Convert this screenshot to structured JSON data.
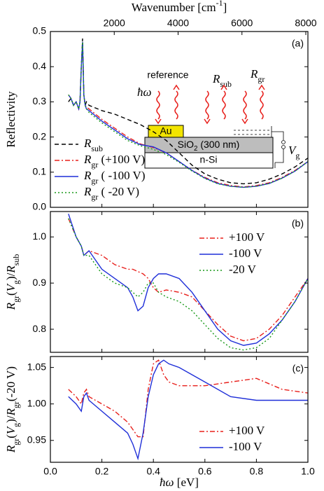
{
  "chart_data": [
    {
      "type": "line",
      "panel_label": "(a)",
      "x2label": [
        [
          "Wavenumber [cm",
          ""
        ],
        [
          "-1",
          "sup"
        ],
        [
          "]",
          ""
        ]
      ],
      "x2lim": [
        0,
        8065.5
      ],
      "x2ticks": [
        2000,
        4000,
        6000,
        8000
      ],
      "ylabel": [
        [
          "Reflectivity",
          ""
        ]
      ],
      "xlim": [
        0,
        1
      ],
      "xticks": [
        {
          "value": 0,
          "label": "0.0"
        },
        0.2,
        0.4,
        0.6,
        0.8,
        {
          "value": 1,
          "label": "1.0"
        }
      ],
      "ylim": [
        0,
        0.5
      ],
      "yticks": [
        {
          "value": 0,
          "label": "0.0"
        },
        0.1,
        0.2,
        0.3,
        0.4,
        0.5
      ],
      "legend": "lower left",
      "x": [
        0.07,
        0.08,
        0.09,
        0.1,
        0.11,
        0.115,
        0.12,
        0.125,
        0.13,
        0.135,
        0.14,
        0.15,
        0.2,
        0.25,
        0.3,
        0.35,
        0.4,
        0.45,
        0.5,
        0.55,
        0.6,
        0.65,
        0.7,
        0.75,
        0.8,
        0.85,
        0.9,
        0.95,
        1.0
      ],
      "series": [
        {
          "name": [
            [
              "R",
              "i"
            ],
            [
              "sub",
              "sub"
            ]
          ],
          "color": "#000000",
          "style": "dashed",
          "values": [
            0.3,
            0.31,
            0.29,
            0.3,
            0.28,
            0.3,
            0.4,
            0.48,
            0.32,
            0.29,
            0.3,
            0.29,
            0.275,
            0.265,
            0.25,
            0.235,
            0.215,
            0.19,
            0.155,
            0.12,
            0.095,
            0.08,
            0.07,
            0.067,
            0.07,
            0.08,
            0.095,
            0.115,
            0.14
          ]
        },
        {
          "name": [
            [
              "R",
              "i"
            ],
            [
              "gr",
              "sub"
            ],
            [
              " (+100 V)",
              ""
            ]
          ],
          "color": "#e8201c",
          "style": "dashdot",
          "values": [
            0.32,
            0.31,
            0.29,
            0.3,
            0.28,
            0.3,
            0.4,
            0.47,
            0.32,
            0.29,
            0.285,
            0.28,
            0.25,
            0.225,
            0.2,
            0.18,
            0.17,
            0.155,
            0.13,
            0.105,
            0.085,
            0.07,
            0.062,
            0.058,
            0.062,
            0.07,
            0.085,
            0.105,
            0.13
          ]
        },
        {
          "name": [
            [
              "R",
              "i"
            ],
            [
              "gr",
              "sub"
            ],
            [
              " ( -100 V)",
              ""
            ]
          ],
          "color": "#1f2fd8",
          "style": "solid",
          "values": [
            0.32,
            0.31,
            0.29,
            0.3,
            0.28,
            0.3,
            0.4,
            0.47,
            0.32,
            0.29,
            0.28,
            0.275,
            0.245,
            0.22,
            0.195,
            0.178,
            0.172,
            0.155,
            0.13,
            0.105,
            0.083,
            0.068,
            0.06,
            0.057,
            0.06,
            0.068,
            0.083,
            0.103,
            0.13
          ]
        },
        {
          "name": [
            [
              "R",
              "i"
            ],
            [
              "gr",
              "sub"
            ],
            [
              " ( -20 V)",
              ""
            ]
          ],
          "color": "#1a9a1a",
          "style": "dotted",
          "values": [
            0.32,
            0.31,
            0.29,
            0.3,
            0.28,
            0.3,
            0.4,
            0.47,
            0.32,
            0.29,
            0.28,
            0.27,
            0.24,
            0.215,
            0.19,
            0.175,
            0.165,
            0.15,
            0.128,
            0.103,
            0.082,
            0.067,
            0.06,
            0.057,
            0.06,
            0.068,
            0.083,
            0.103,
            0.13
          ]
        }
      ]
    },
    {
      "type": "line",
      "panel_label": "(b)",
      "ylabel": [
        [
          "R",
          "i"
        ],
        [
          "gr",
          "sub"
        ],
        [
          "(",
          ""
        ],
        [
          "V",
          "i"
        ],
        [
          "g",
          "sub"
        ],
        [
          ")/",
          ""
        ],
        [
          "R",
          "i"
        ],
        [
          "sub",
          "sub"
        ]
      ],
      "xlim": [
        0,
        1
      ],
      "xticks": [
        {
          "value": 0,
          "label": "0.0"
        },
        0.2,
        0.4,
        0.6,
        0.8,
        {
          "value": 1,
          "label": "1.0"
        }
      ],
      "ylim": [
        0.75,
        1.055
      ],
      "yticks": [
        0.8,
        0.9,
        {
          "value": 1,
          "label": "1.0"
        }
      ],
      "legend": "upper right",
      "x": [
        0.07,
        0.1,
        0.12,
        0.13,
        0.15,
        0.2,
        0.25,
        0.3,
        0.32,
        0.34,
        0.36,
        0.38,
        0.4,
        0.42,
        0.45,
        0.5,
        0.55,
        0.6,
        0.65,
        0.7,
        0.75,
        0.8,
        0.85,
        0.9,
        0.95,
        1.0
      ],
      "series": [
        {
          "name": [
            [
              "+100 V",
              ""
            ]
          ],
          "color": "#e8201c",
          "style": "dashdot",
          "values": [
            1.04,
            1.0,
            0.98,
            0.96,
            0.97,
            0.96,
            0.94,
            0.93,
            0.93,
            0.925,
            0.92,
            0.91,
            0.89,
            0.88,
            0.885,
            0.88,
            0.87,
            0.84,
            0.81,
            0.785,
            0.775,
            0.78,
            0.8,
            0.83,
            0.87,
            0.91
          ]
        },
        {
          "name": [
            [
              "-100 V",
              ""
            ]
          ],
          "color": "#1f2fd8",
          "style": "solid",
          "values": [
            1.05,
            1.0,
            0.98,
            0.96,
            0.97,
            0.93,
            0.91,
            0.89,
            0.87,
            0.84,
            0.85,
            0.89,
            0.91,
            0.92,
            0.92,
            0.91,
            0.88,
            0.84,
            0.8,
            0.775,
            0.765,
            0.77,
            0.79,
            0.82,
            0.86,
            0.91
          ]
        },
        {
          "name": [
            [
              "-20 V",
              ""
            ]
          ],
          "color": "#1a9a1a",
          "style": "dotted",
          "values": [
            1.04,
            1.0,
            0.98,
            0.96,
            0.96,
            0.92,
            0.9,
            0.89,
            0.88,
            0.87,
            0.88,
            0.9,
            0.9,
            0.88,
            0.87,
            0.86,
            0.84,
            0.81,
            0.78,
            0.76,
            0.755,
            0.76,
            0.78,
            0.82,
            0.86,
            0.91
          ]
        }
      ]
    },
    {
      "type": "line",
      "panel_label": "(c)",
      "xlabel": [
        [
          "ħω",
          "i"
        ],
        [
          " [eV]",
          ""
        ]
      ],
      "ylabel": [
        [
          "R",
          "i"
        ],
        [
          "gr",
          "sub"
        ],
        [
          "(",
          ""
        ],
        [
          "V",
          "i"
        ],
        [
          "g",
          "sub"
        ],
        [
          ")/",
          ""
        ],
        [
          "R",
          "i"
        ],
        [
          "gr",
          "sub"
        ],
        [
          "(-20 V)",
          ""
        ]
      ],
      "xlim": [
        0,
        1
      ],
      "xticks": [
        {
          "value": 0,
          "label": "0.0"
        },
        0.2,
        0.4,
        0.6,
        0.8,
        {
          "value": 1,
          "label": "1.0"
        }
      ],
      "ylim": [
        0.92,
        1.065
      ],
      "yticks": [
        0.95,
        {
          "value": 1,
          "label": "1.00"
        },
        1.05
      ],
      "legend": "lower right",
      "x": [
        0.07,
        0.1,
        0.12,
        0.13,
        0.14,
        0.15,
        0.2,
        0.25,
        0.3,
        0.32,
        0.34,
        0.36,
        0.38,
        0.4,
        0.42,
        0.44,
        0.46,
        0.5,
        0.55,
        0.6,
        0.7,
        0.8,
        0.9,
        1.0
      ],
      "series": [
        {
          "name": [
            [
              "+100 V",
              ""
            ]
          ],
          "color": "#e8201c",
          "style": "dashdot",
          "values": [
            1.02,
            1.01,
            1.0,
            1.015,
            1.02,
            1.01,
            1.0,
            0.99,
            0.975,
            0.965,
            0.955,
            0.955,
            1.02,
            1.055,
            1.06,
            1.04,
            1.03,
            1.025,
            1.025,
            1.025,
            1.03,
            1.035,
            1.02,
            1.015
          ]
        },
        {
          "name": [
            [
              "-100 V",
              ""
            ]
          ],
          "color": "#1f2fd8",
          "style": "solid",
          "values": [
            1.01,
            1.0,
            0.99,
            1.01,
            1.015,
            1.005,
            0.99,
            0.975,
            0.96,
            0.945,
            0.925,
            0.96,
            1.01,
            1.04,
            1.055,
            1.06,
            1.055,
            1.05,
            1.04,
            1.03,
            1.01,
            1.005,
            1.005,
            1.005
          ]
        }
      ]
    }
  ],
  "inset": {
    "reference": "reference",
    "photon": [
      [
        "ħω",
        "i"
      ]
    ],
    "au": "Au",
    "sio2": [
      [
        "SiO",
        ""
      ],
      [
        "2",
        "sub"
      ],
      [
        " (300 nm)",
        ""
      ]
    ],
    "nsi": "n-Si",
    "r_sub": [
      [
        "R",
        "i"
      ],
      [
        "sub",
        "sub"
      ]
    ],
    "r_gr": [
      [
        "R",
        "i"
      ],
      [
        "gr",
        "sub"
      ]
    ],
    "v_g": [
      [
        "V",
        "i"
      ],
      [
        "g",
        "sub"
      ]
    ]
  }
}
